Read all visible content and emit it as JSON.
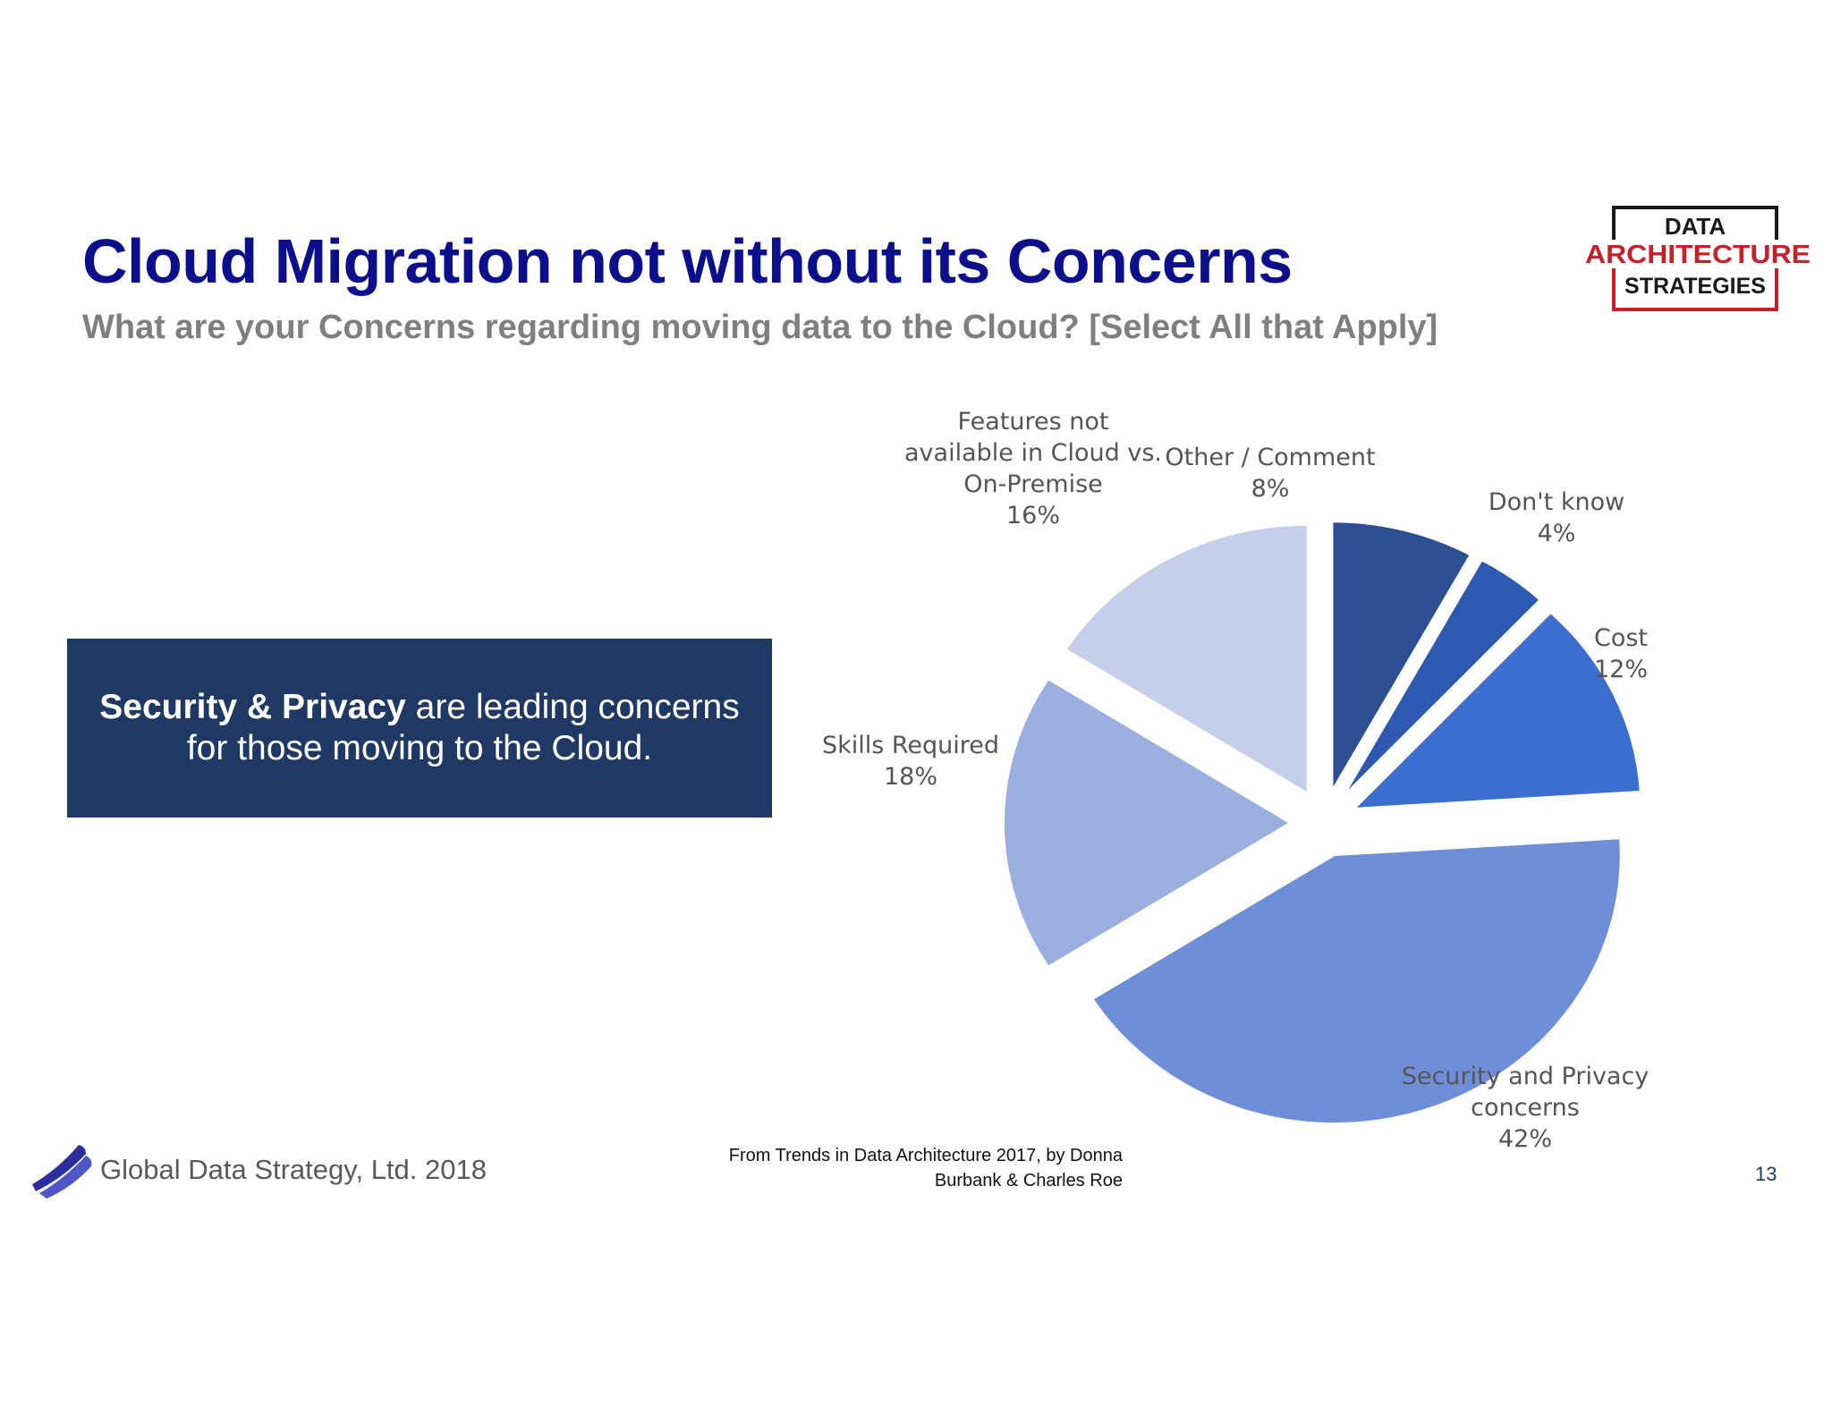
{
  "slide": {
    "title": "Cloud Migration not without its Concerns",
    "subtitle": "What are your Concerns regarding moving data to the Cloud?  [Select All that Apply]"
  },
  "logo": {
    "line1": "DATA",
    "line2": "ARCHITECTURE",
    "line3": "STRATEGIES"
  },
  "callout": {
    "bold": "Security & Privacy",
    "text": " are leading concerns for those moving to the Cloud."
  },
  "chart_data": {
    "type": "pie",
    "slices": [
      {
        "label": [
          "Other / Comment"
        ],
        "value": 8,
        "value_label": "8%",
        "color": "#2f4f93"
      },
      {
        "label": [
          "Don't know"
        ],
        "value": 4,
        "value_label": "4%",
        "color": "#2e59b0"
      },
      {
        "label": [
          "Cost"
        ],
        "value": 12,
        "value_label": "12%",
        "color": "#3b6fcf"
      },
      {
        "label": [
          "Security and Privacy",
          "concerns"
        ],
        "value": 42,
        "value_label": "42%",
        "color": "#6e8fd8"
      },
      {
        "label": [
          "Skills Required"
        ],
        "value": 18,
        "value_label": "18%",
        "color": "#9aafe0"
      },
      {
        "label": [
          "Features not",
          "available in Cloud vs.",
          "On-Premise"
        ],
        "value": 16,
        "value_label": "16%",
        "color": "#c5cfeb"
      }
    ]
  },
  "source": {
    "line1": "From Trends in Data Architecture 2017, by Donna",
    "line2": "Burbank & Charles Roe"
  },
  "footer": {
    "company": "Global Data Strategy, Ltd. 2018",
    "page_number": "13"
  }
}
